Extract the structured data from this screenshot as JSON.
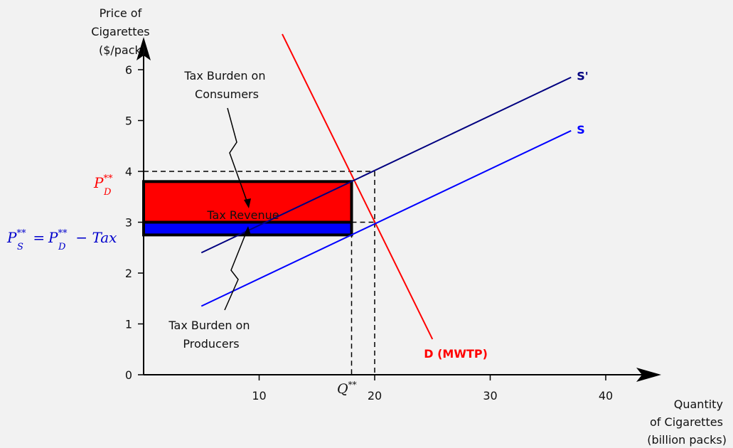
{
  "chart_data": {
    "type": "line",
    "xlabel_lines": [
      "Quantity",
      "of Cigarettes",
      "(billion packs)"
    ],
    "ylabel_lines": [
      "Price of",
      "Cigarettes",
      "($/pack)"
    ],
    "xlim": [
      0,
      44
    ],
    "ylim": [
      0,
      6.4
    ],
    "x_ticks": [
      10,
      20,
      30,
      40
    ],
    "y_ticks": [
      0,
      1,
      2,
      3,
      4,
      5,
      6
    ],
    "series": [
      {
        "name": "D (MWTP)",
        "color": "#ff0000",
        "x": [
          12,
          25
        ],
        "y": [
          6.7,
          0.7
        ]
      },
      {
        "name": "S",
        "color": "#0000ff",
        "x": [
          5,
          37
        ],
        "y": [
          1.35,
          4.8
        ]
      },
      {
        "name": "S'",
        "color": "#000080",
        "x": [
          5,
          37
        ],
        "y": [
          2.4,
          5.85
        ]
      }
    ],
    "reference_points": {
      "Q_star_star": 18,
      "Q_equilibrium": 20,
      "P_D": 3.8,
      "P_S": 2.75,
      "P_equilibrium": 3.0,
      "P_S_prime_at_Q_eq": 4.0
    },
    "annotations": {
      "q_star_label_base": "Q",
      "q_star_label_sup": "**",
      "pd_label_base": "P",
      "pd_label_sub": "D",
      "pd_label_sup": "**",
      "ps_label_base": "P",
      "ps_label_sub": "S",
      "ps_label_sup": "**",
      "ps_label_eq": " = ",
      "ps_label_rhs_base": "P",
      "ps_label_rhs_sub": "D",
      "ps_label_rhs_sup": "**",
      "ps_label_minus_tax": " − Tax",
      "tax_revenue": "Tax Revenue",
      "consumer_burden": [
        "Tax Burden on",
        "Consumers"
      ],
      "producer_burden": [
        "Tax Burden on",
        "Producers"
      ]
    },
    "colors": {
      "consumer_burden_fill": "#ff0000",
      "producer_burden_fill": "#0000ff",
      "axis": "#000000"
    }
  }
}
